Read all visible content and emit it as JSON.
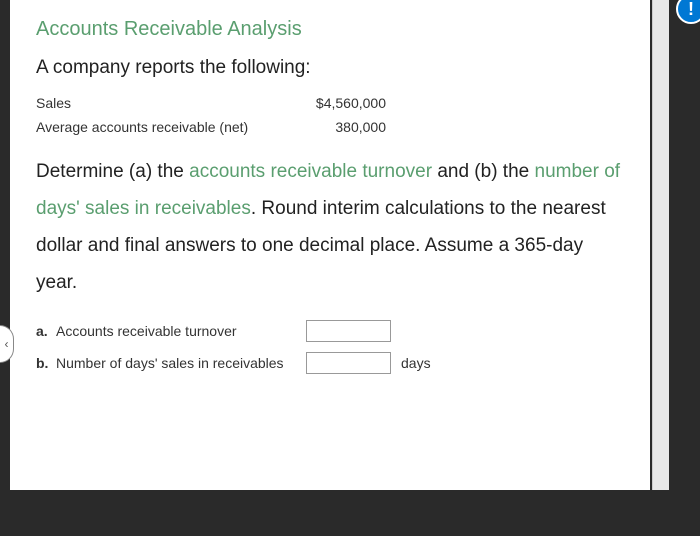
{
  "colors": {
    "accent": "#5a9e6f",
    "help_badge": "#0078d4",
    "page_bg": "#ffffff",
    "outer_bg": "#2a2a2a",
    "text": "#222222"
  },
  "title": "Accounts Receivable Analysis",
  "intro": "A company reports the following:",
  "data_rows": [
    {
      "label": "Sales",
      "value": "$4,560,000"
    },
    {
      "label": "Average accounts receivable (net)",
      "value": "380,000"
    }
  ],
  "instructions": {
    "pre1": "Determine (a) the ",
    "term1": "accounts receivable turnover",
    "mid": " and (b) the ",
    "term2": "number of days' sales in receivables",
    "post": ". Round interim calculations to the nearest dollar and final answers to one decimal place. Assume a 365-day year."
  },
  "answers": [
    {
      "letter": "a.",
      "label": "Accounts receivable turnover",
      "value": "",
      "unit": ""
    },
    {
      "letter": "b.",
      "label": "Number of days' sales in receivables",
      "value": "",
      "unit": "days"
    }
  ],
  "help_icon": "!",
  "left_tab_glyph": "‹"
}
